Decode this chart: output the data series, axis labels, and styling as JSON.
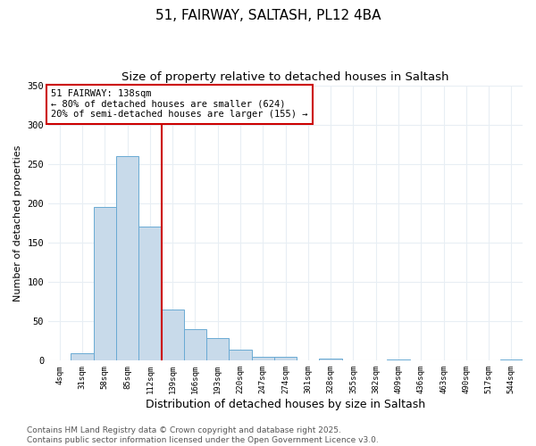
{
  "title_line1": "51, FAIRWAY, SALTASH, PL12 4BA",
  "title_line2": "Size of property relative to detached houses in Saltash",
  "xlabel": "Distribution of detached houses by size in Saltash",
  "ylabel": "Number of detached properties",
  "bar_labels": [
    "4sqm",
    "31sqm",
    "58sqm",
    "85sqm",
    "112sqm",
    "139sqm",
    "166sqm",
    "193sqm",
    "220sqm",
    "247sqm",
    "274sqm",
    "301sqm",
    "328sqm",
    "355sqm",
    "382sqm",
    "409sqm",
    "436sqm",
    "463sqm",
    "490sqm",
    "517sqm",
    "544sqm"
  ],
  "bar_heights": [
    0,
    10,
    195,
    260,
    170,
    65,
    40,
    29,
    14,
    5,
    5,
    0,
    3,
    0,
    0,
    2,
    0,
    0,
    0,
    0,
    2
  ],
  "bar_color": "#c8daea",
  "bar_edge_color": "#6aaad4",
  "ylim": [
    0,
    350
  ],
  "yticks": [
    0,
    50,
    100,
    150,
    200,
    250,
    300,
    350
  ],
  "vline_x_index": 4.5,
  "vline_color": "#cc0000",
  "annotation_text": "51 FAIRWAY: 138sqm\n← 80% of detached houses are smaller (624)\n20% of semi-detached houses are larger (155) →",
  "annotation_box_color": "#cc0000",
  "background_color": "#ffffff",
  "grid_color": "#e8eef4",
  "footnote": "Contains HM Land Registry data © Crown copyright and database right 2025.\nContains public sector information licensed under the Open Government Licence v3.0.",
  "title_fontsize": 11,
  "subtitle_fontsize": 9.5,
  "xlabel_fontsize": 9,
  "ylabel_fontsize": 8,
  "annotation_fontsize": 7.5,
  "tick_fontsize": 6.5,
  "footnote_fontsize": 6.5
}
